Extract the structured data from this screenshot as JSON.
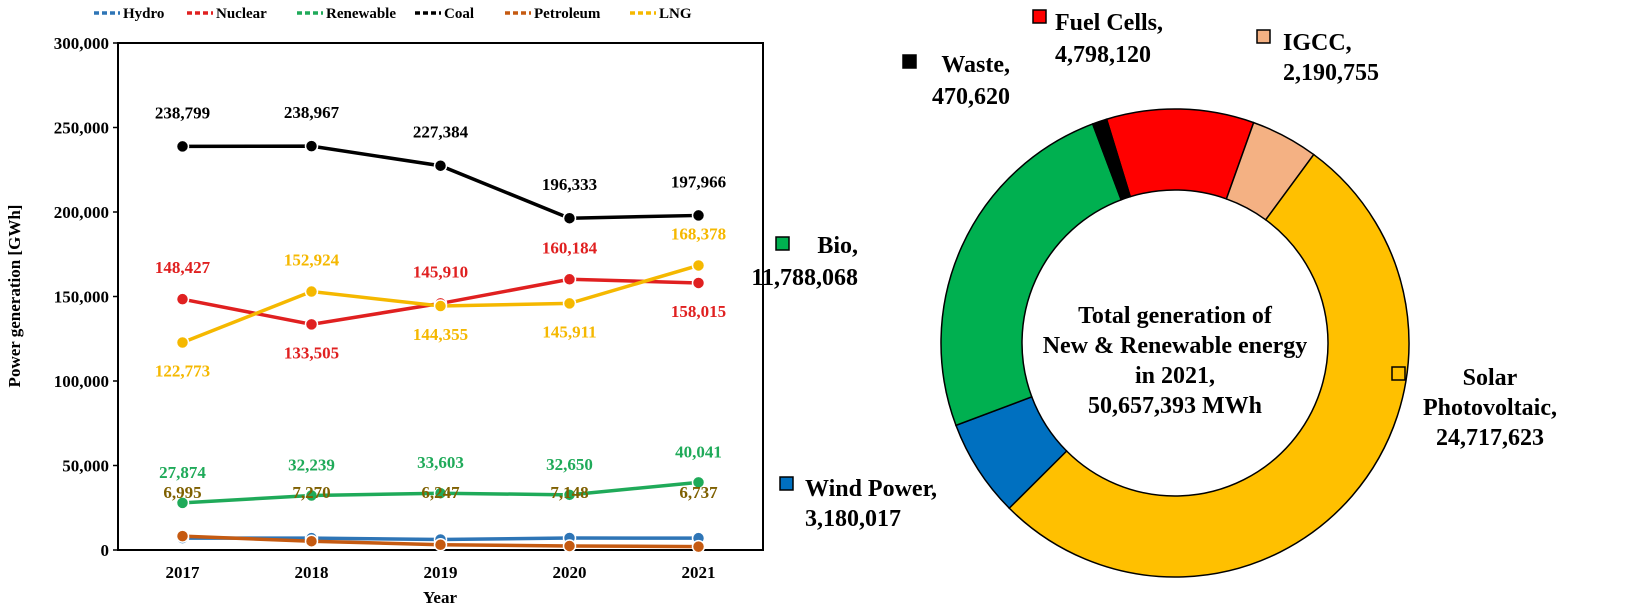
{
  "chart_data": [
    {
      "type": "line",
      "xlabel": "Year",
      "ylabel": "Power generation [GWh]",
      "ylim": [
        0,
        300000
      ],
      "yticks": [
        "0",
        "50,000",
        "100,000",
        "150,000",
        "200,000",
        "250,000",
        "300,000"
      ],
      "categories": [
        "2017",
        "2018",
        "2019",
        "2020",
        "2021"
      ],
      "legend_position": "top",
      "series": [
        {
          "name": "Hydro",
          "color": "#2E75B6",
          "values": [
            7000,
            7000,
            6200,
            7100,
            7000
          ],
          "labels": [
            "",
            "",
            "",
            "",
            ""
          ]
        },
        {
          "name": "Nuclear",
          "color": "#E02020",
          "values": [
            148427,
            133505,
            145910,
            160184,
            158015
          ],
          "labels": [
            "148,427",
            "133,505",
            "145,910",
            "160,184",
            "158,015"
          ]
        },
        {
          "name": "Renewable",
          "color": "#1FAA59",
          "values": [
            27874,
            32239,
            33603,
            32650,
            40041
          ],
          "labels": [
            "27,874",
            "32,239",
            "33,603",
            "32,650",
            "40,041"
          ]
        },
        {
          "name": "Coal",
          "color": "#000000",
          "values": [
            238799,
            238967,
            227384,
            196333,
            197966
          ],
          "labels": [
            "238,799",
            "238,967",
            "227,384",
            "196,333",
            "197,966"
          ]
        },
        {
          "name": "Petroleum",
          "color": "#C55A11",
          "values": [
            8200,
            5200,
            3100,
            2400,
            2000
          ],
          "labels": [
            "",
            "",
            "",
            "",
            ""
          ]
        },
        {
          "name": "LNG",
          "color": "#F5B800",
          "values": [
            122773,
            152924,
            144355,
            145911,
            168378
          ],
          "labels": [
            "122,773",
            "152,924",
            "144,355",
            "145,911",
            "168,378"
          ]
        }
      ],
      "extra_labels": {
        "color": "#7F6000",
        "values": [
          "6,995",
          "7,270",
          "6,247",
          "7,148",
          "6,737"
        ]
      }
    },
    {
      "type": "pie",
      "donut": true,
      "center_text": [
        "Total generation of",
        "New & Renewable energy",
        "in 2021,",
        "50,657,393 MWh"
      ],
      "slices": [
        {
          "name": "Fuel Cells,",
          "value": 4798120,
          "label": "4,798,120",
          "color": "#FF0000"
        },
        {
          "name": "IGCC,",
          "value": 2190755,
          "label": "2,190,755",
          "color": "#F4B183"
        },
        {
          "name": "Solar Photovoltaic,",
          "value": 24717623,
          "label": "24,717,623",
          "color": "#FFC000"
        },
        {
          "name": "Wind Power,",
          "value": 3180017,
          "label": "3,180,017",
          "color": "#0070C0"
        },
        {
          "name": "Bio,",
          "value": 11788068,
          "label": "11,788,068",
          "color": "#00B050"
        },
        {
          "name": "Waste,",
          "value": 470620,
          "label": "470,620",
          "color": "#000000"
        }
      ]
    }
  ]
}
